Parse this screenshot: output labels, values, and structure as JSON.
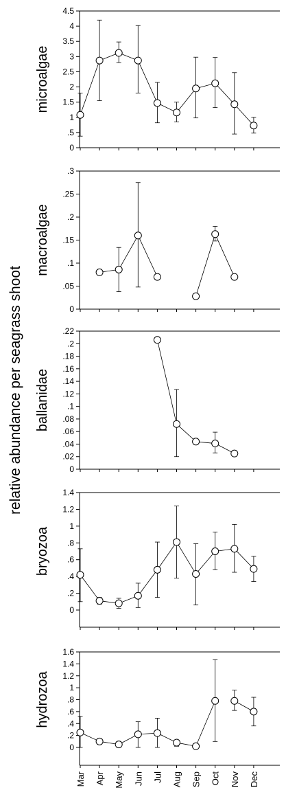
{
  "figure": {
    "shared_ylabel": "relative abundance per seagrass shoot",
    "months": [
      "Mar",
      "Apr",
      "May",
      "Jun",
      "Jul",
      "Aug",
      "Sep",
      "Oct",
      "Nov",
      "Dec"
    ]
  },
  "chart_data": [
    {
      "type": "line",
      "ylabel": "microalgae",
      "ylim": [
        0,
        4.5
      ],
      "yticks": [
        0,
        0.5,
        1,
        1.5,
        2,
        2.5,
        3,
        3.5,
        4,
        4.5
      ],
      "ytick_labels": [
        "0",
        ".5",
        "1",
        "1.5",
        "2",
        "2.5",
        "3",
        "3.5",
        "4",
        "4.5"
      ],
      "series": [
        {
          "values": [
            1.08,
            2.87,
            3.12,
            2.87,
            1.47,
            1.16,
            1.95,
            2.12,
            1.43,
            0.73
          ],
          "err_low": [
            0.38,
            1.55,
            2.8,
            1.8,
            0.82,
            0.85,
            0.98,
            1.32,
            0.45,
            0.48
          ],
          "err_high": [
            1.8,
            4.2,
            3.48,
            4.02,
            2.15,
            1.5,
            2.98,
            2.97,
            2.47,
            1.0
          ]
        }
      ]
    },
    {
      "type": "line",
      "ylabel": "macroalgae",
      "ylim": [
        0,
        0.3
      ],
      "yticks": [
        0,
        0.05,
        0.1,
        0.15,
        0.2,
        0.25,
        0.3
      ],
      "ytick_labels": [
        "0",
        ".05",
        ".1",
        ".15",
        ".2",
        ".25",
        ".3"
      ],
      "series": [
        {
          "values": [
            null,
            0.08,
            0.086,
            0.16,
            0.07,
            null,
            0.028,
            0.163,
            0.07,
            null
          ],
          "err_low": [
            null,
            null,
            0.038,
            0.048,
            null,
            null,
            null,
            0.148,
            null,
            null
          ],
          "err_high": [
            null,
            null,
            0.134,
            0.275,
            null,
            null,
            null,
            0.18,
            null,
            null
          ]
        }
      ]
    },
    {
      "type": "line",
      "ylabel": "ballanidae",
      "ylim": [
        0,
        0.22
      ],
      "yticks": [
        0,
        0.02,
        0.04,
        0.06,
        0.08,
        0.1,
        0.12,
        0.14,
        0.16,
        0.18,
        0.2,
        0.22
      ],
      "ytick_labels": [
        "0",
        ".02",
        ".04",
        ".06",
        ".08",
        ".1",
        ".12",
        ".14",
        ".16",
        ".18",
        ".2",
        ".22"
      ],
      "series": [
        {
          "values": [
            null,
            null,
            null,
            null,
            0.206,
            0.072,
            0.044,
            0.041,
            0.025,
            null
          ],
          "err_low": [
            null,
            null,
            null,
            null,
            null,
            0.02,
            null,
            0.026,
            null,
            null
          ],
          "err_high": [
            null,
            null,
            null,
            null,
            null,
            0.127,
            null,
            0.059,
            null,
            null
          ]
        }
      ]
    },
    {
      "type": "line",
      "ylabel": "bryozoa",
      "ylim": [
        -0.2,
        1.4
      ],
      "yticks": [
        0,
        0.2,
        0.4,
        0.6,
        0.8,
        1,
        1.2,
        1.4
      ],
      "ytick_labels": [
        "0",
        ".2",
        ".4",
        ".6",
        ".8",
        "1",
        "1.2",
        "1.4"
      ],
      "series": [
        {
          "values": [
            0.42,
            0.11,
            0.08,
            0.17,
            0.48,
            0.81,
            0.43,
            0.7,
            0.73,
            0.49
          ],
          "err_low": [
            0.1,
            0.07,
            0.02,
            0.03,
            0.15,
            0.38,
            0.06,
            0.48,
            0.45,
            0.34
          ],
          "err_high": [
            0.73,
            0.15,
            0.14,
            0.32,
            0.81,
            1.24,
            0.79,
            0.93,
            1.02,
            0.64
          ]
        }
      ]
    },
    {
      "type": "line",
      "ylabel": "hydrozoa",
      "ylim": [
        -0.2,
        1.6
      ],
      "yticks": [
        0,
        0.2,
        0.4,
        0.6,
        0.8,
        1,
        1.2,
        1.4,
        1.6
      ],
      "ytick_labels": [
        "0",
        ".2",
        ".4",
        ".6",
        ".8",
        "1",
        "1.2",
        "1.4",
        "1.6"
      ],
      "series": [
        {
          "values": [
            0.25,
            0.1,
            0.05,
            0.22,
            0.24,
            0.08,
            0.02,
            0.78,
            0.78,
            0.6
          ],
          "err_low": [
            0,
            null,
            0,
            0,
            0,
            0.02,
            null,
            0.1,
            0.62,
            0.36
          ],
          "err_high": [
            0.52,
            null,
            0.1,
            0.43,
            0.49,
            0.12,
            null,
            1.47,
            0.96,
            0.84
          ],
          "breaks_after": [
            7
          ]
        }
      ]
    }
  ]
}
